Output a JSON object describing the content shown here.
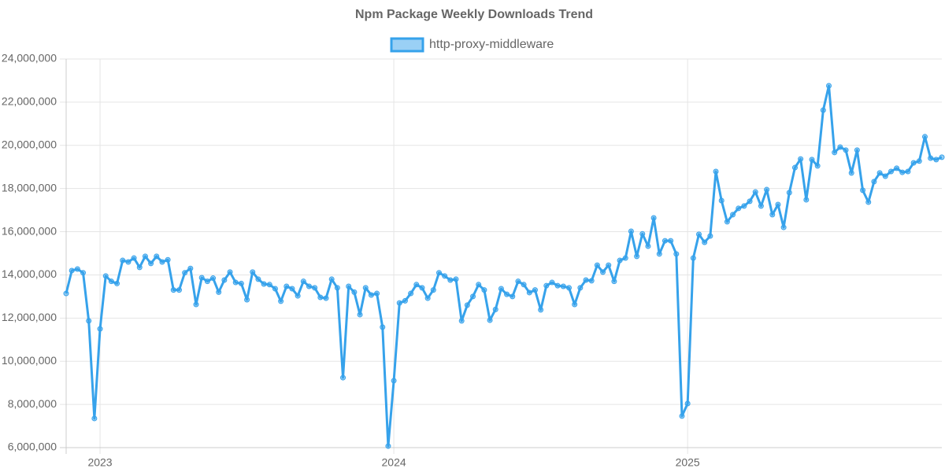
{
  "chart_data": {
    "type": "line",
    "title": "Npm Package Weekly Downloads Trend",
    "categories": [
      null,
      null,
      null,
      null,
      null,
      null,
      "2023",
      null,
      null,
      null,
      null,
      null,
      null,
      null,
      null,
      null,
      null,
      null,
      null,
      null,
      null,
      null,
      null,
      null,
      null,
      null,
      null,
      null,
      null,
      null,
      null,
      null,
      null,
      null,
      null,
      null,
      null,
      null,
      null,
      null,
      null,
      null,
      null,
      null,
      null,
      null,
      null,
      null,
      null,
      null,
      null,
      null,
      null,
      null,
      null,
      null,
      null,
      null,
      "2024",
      null,
      null,
      null,
      null,
      null,
      null,
      null,
      null,
      null,
      null,
      null,
      null,
      null,
      null,
      null,
      null,
      null,
      null,
      null,
      null,
      null,
      null,
      null,
      null,
      null,
      null,
      null,
      null,
      null,
      null,
      null,
      null,
      null,
      null,
      null,
      null,
      null,
      null,
      null,
      null,
      null,
      null,
      null,
      null,
      null,
      null,
      null,
      null,
      null,
      null,
      null,
      "2025",
      null,
      null,
      null,
      null,
      null,
      null,
      null,
      null,
      null,
      null,
      null,
      null,
      null,
      null,
      null,
      null,
      null,
      null,
      null,
      null,
      null,
      null,
      null,
      null,
      null,
      null,
      null,
      null,
      null,
      null,
      null,
      null,
      null,
      null,
      null,
      null,
      null,
      null,
      null,
      null,
      null,
      null,
      null,
      null,
      null
    ],
    "series": [
      {
        "name": "http-proxy-middleware",
        "color": "#36a2eb",
        "fill": "rgba(54,162,235,0.5)",
        "values": [
          13140000,
          14200000,
          14270000,
          14100000,
          11870000,
          7350000,
          11500000,
          13950000,
          13700000,
          13600000,
          14670000,
          14600000,
          14780000,
          14350000,
          14860000,
          14530000,
          14860000,
          14600000,
          14700000,
          13300000,
          13300000,
          14100000,
          14300000,
          12630000,
          13870000,
          13700000,
          13850000,
          13200000,
          13760000,
          14130000,
          13650000,
          13600000,
          12850000,
          14130000,
          13800000,
          13580000,
          13550000,
          13360000,
          12780000,
          13470000,
          13360000,
          13030000,
          13700000,
          13470000,
          13400000,
          12960000,
          12920000,
          13800000,
          13400000,
          9240000,
          13470000,
          13200000,
          12160000,
          13400000,
          13070000,
          13140000,
          11580000,
          6070000,
          9100000,
          12700000,
          12800000,
          13140000,
          13550000,
          13400000,
          12920000,
          13300000,
          14100000,
          13950000,
          13760000,
          13800000,
          11870000,
          12600000,
          13000000,
          13550000,
          13300000,
          11900000,
          12400000,
          13360000,
          13100000,
          13000000,
          13700000,
          13550000,
          13180000,
          13300000,
          12380000,
          13500000,
          13650000,
          13500000,
          13470000,
          13400000,
          12630000,
          13400000,
          13760000,
          13730000,
          14450000,
          14130000,
          14450000,
          13700000,
          14670000,
          14780000,
          16020000,
          14860000,
          15900000,
          15330000,
          16640000,
          14970000,
          15580000,
          15580000,
          14970000,
          7460000,
          8040000,
          14780000,
          15880000,
          15510000,
          15800000,
          18790000,
          17440000,
          16460000,
          16790000,
          17080000,
          17190000,
          17410000,
          17840000,
          17190000,
          17950000,
          16790000,
          17260000,
          16200000,
          17810000,
          18970000,
          19370000,
          17480000,
          19340000,
          19050000,
          21630000,
          22760000,
          19670000,
          19920000,
          19780000,
          18720000,
          19780000,
          17920000,
          17370000,
          18320000,
          18720000,
          18570000,
          18790000,
          18940000,
          18750000,
          18790000,
          19190000,
          19270000,
          20400000,
          19410000,
          19340000,
          19450000
        ]
      }
    ],
    "ylim": [
      6000000,
      24000000
    ],
    "yticks": [
      {
        "value": 6000000,
        "label": "6,000,000"
      },
      {
        "value": 8000000,
        "label": "8,000,000"
      },
      {
        "value": 10000000,
        "label": "10,000,000"
      },
      {
        "value": 12000000,
        "label": "12,000,000"
      },
      {
        "value": 14000000,
        "label": "14,000,000"
      },
      {
        "value": 16000000,
        "label": "16,000,000"
      },
      {
        "value": 18000000,
        "label": "18,000,000"
      },
      {
        "value": 20000000,
        "label": "20,000,000"
      },
      {
        "value": 22000000,
        "label": "22,000,000"
      },
      {
        "value": 24000000,
        "label": "24,000,000"
      }
    ],
    "grid": true,
    "legend": "top"
  }
}
